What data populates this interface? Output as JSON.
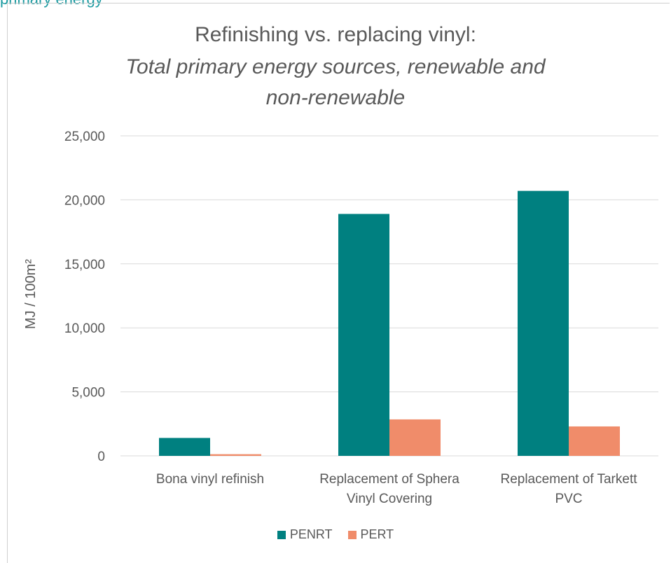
{
  "header_fragment": "primary energy",
  "chart_data": {
    "type": "bar",
    "title_line1": "Refinishing vs. replacing vinyl:",
    "title_line2": "Total primary energy sources, renewable and",
    "title_line3": "non-renewable",
    "ylabel": "MJ  /  100m²",
    "xlabel": "",
    "ylim": [
      0,
      25000
    ],
    "yticks": [
      0,
      5000,
      10000,
      15000,
      20000,
      25000
    ],
    "ytick_labels": [
      "0",
      "5,000",
      "10,000",
      "15,000",
      "20,000",
      "25,000"
    ],
    "categories": [
      [
        "Bona vinyl refinish"
      ],
      [
        "Replacement of Sphera",
        "Vinyl Covering"
      ],
      [
        "Replacement of Tarkett",
        "PVC"
      ]
    ],
    "series": [
      {
        "name": "PENRT",
        "color": "#008080",
        "values": [
          1400,
          18900,
          20700
        ]
      },
      {
        "name": "PERT",
        "color": "#f08c6a",
        "values": [
          130,
          2850,
          2300
        ]
      }
    ],
    "grid": true,
    "legend_position": "bottom"
  }
}
